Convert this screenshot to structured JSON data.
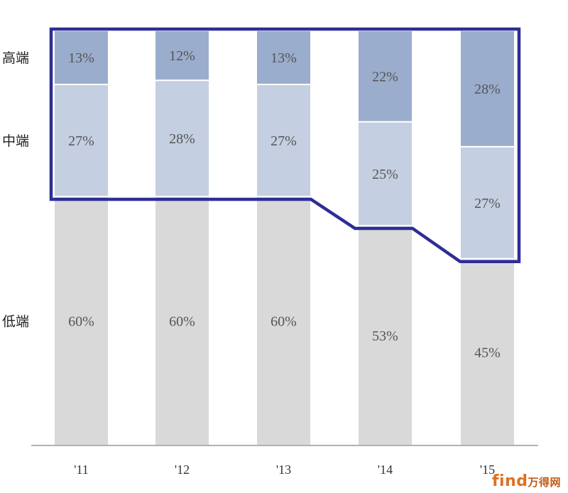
{
  "chart_data": {
    "type": "bar",
    "stacked": true,
    "normalized": true,
    "categories": [
      "'11",
      "'12",
      "'13",
      "'14",
      "'15"
    ],
    "series": [
      {
        "name": "低端",
        "values": [
          60,
          60,
          60,
          53,
          45
        ],
        "labels": [
          "60%",
          "60%",
          "60%",
          "53%",
          "45%"
        ],
        "color": "#d9d9d9"
      },
      {
        "name": "中端",
        "values": [
          27,
          28,
          27,
          25,
          27
        ],
        "labels": [
          "27%",
          "28%",
          "27%",
          "25%",
          "27%"
        ],
        "color": "#c4cfe1"
      },
      {
        "name": "高端",
        "values": [
          13,
          12,
          13,
          22,
          28
        ],
        "labels": [
          "13%",
          "12%",
          "13%",
          "22%",
          "28%"
        ],
        "color": "#9aadcd"
      }
    ],
    "ylim": [
      0,
      100
    ],
    "highlight": {
      "description": "mid + high segments outlined",
      "color": "#2e2e96"
    }
  },
  "watermark": {
    "latin": "find",
    "chinese": "万得网"
  }
}
